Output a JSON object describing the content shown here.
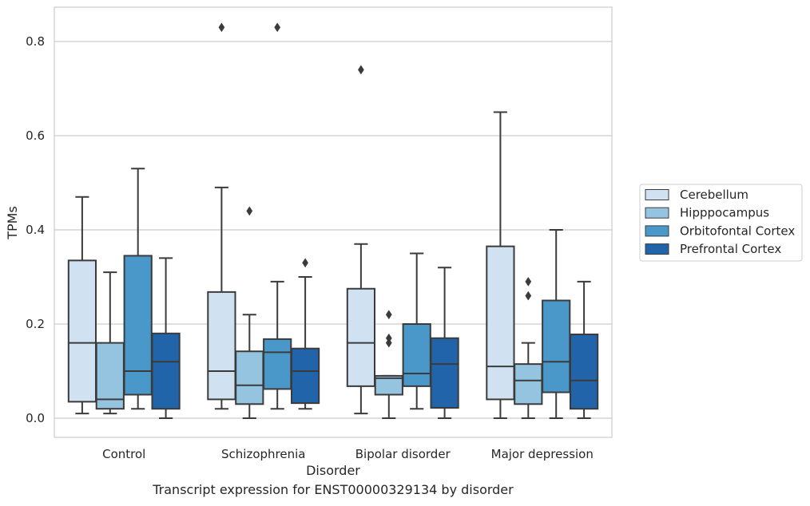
{
  "chart_data": {
    "type": "box",
    "title": "",
    "caption": "Transcript expression for ENST00000329134 by disorder",
    "xlabel": "Disorder",
    "ylabel": "TPMs",
    "ylim": [
      -0.04,
      0.875
    ],
    "yticks": [
      0.0,
      0.2,
      0.4,
      0.6,
      0.8
    ],
    "ytick_labels": [
      "0.0",
      "0.2",
      "0.4",
      "0.6",
      "0.8"
    ],
    "grid": "horizontal",
    "legend_position": "right",
    "categories": [
      "Control",
      "Schizophrenia",
      "Bipolar disorder",
      "Major depression"
    ],
    "series": [
      {
        "name": "Cerebellum",
        "color": "#d0e1f2",
        "boxes": [
          {
            "whislo": 0.01,
            "q1": 0.035,
            "med": 0.16,
            "q3": 0.335,
            "whishi": 0.47,
            "fliers": []
          },
          {
            "whislo": 0.02,
            "q1": 0.04,
            "med": 0.1,
            "q3": 0.268,
            "whishi": 0.49,
            "fliers": [
              0.83
            ]
          },
          {
            "whislo": 0.01,
            "q1": 0.068,
            "med": 0.16,
            "q3": 0.275,
            "whishi": 0.37,
            "fliers": [
              0.74
            ]
          },
          {
            "whislo": 0.0,
            "q1": 0.04,
            "med": 0.11,
            "q3": 0.365,
            "whishi": 0.65,
            "fliers": []
          }
        ]
      },
      {
        "name": "Hipppocampus",
        "color": "#94c4df",
        "boxes": [
          {
            "whislo": 0.01,
            "q1": 0.02,
            "med": 0.04,
            "q3": 0.16,
            "whishi": 0.31,
            "fliers": []
          },
          {
            "whislo": 0.0,
            "q1": 0.03,
            "med": 0.07,
            "q3": 0.142,
            "whishi": 0.22,
            "fliers": [
              0.44
            ]
          },
          {
            "whislo": 0.0,
            "q1": 0.05,
            "med": 0.085,
            "q3": 0.09,
            "whishi": 0.09,
            "fliers": [
              0.22,
              0.17,
              0.16
            ]
          },
          {
            "whislo": 0.0,
            "q1": 0.03,
            "med": 0.08,
            "q3": 0.115,
            "whishi": 0.16,
            "fliers": [
              0.29,
              0.26
            ]
          }
        ]
      },
      {
        "name": "Orbitofontal Cortex",
        "color": "#4a98c9",
        "boxes": [
          {
            "whislo": 0.02,
            "q1": 0.05,
            "med": 0.1,
            "q3": 0.345,
            "whishi": 0.53,
            "fliers": []
          },
          {
            "whislo": 0.02,
            "q1": 0.062,
            "med": 0.14,
            "q3": 0.168,
            "whishi": 0.29,
            "fliers": [
              0.83
            ]
          },
          {
            "whislo": 0.02,
            "q1": 0.068,
            "med": 0.095,
            "q3": 0.2,
            "whishi": 0.35,
            "fliers": []
          },
          {
            "whislo": 0.0,
            "q1": 0.055,
            "med": 0.12,
            "q3": 0.25,
            "whishi": 0.4,
            "fliers": []
          }
        ]
      },
      {
        "name": "Prefrontal Cortex",
        "color": "#2264a9",
        "boxes": [
          {
            "whislo": 0.0,
            "q1": 0.02,
            "med": 0.12,
            "q3": 0.18,
            "whishi": 0.34,
            "fliers": []
          },
          {
            "whislo": 0.02,
            "q1": 0.032,
            "med": 0.1,
            "q3": 0.148,
            "whishi": 0.3,
            "fliers": [
              0.33
            ]
          },
          {
            "whislo": 0.0,
            "q1": 0.022,
            "med": 0.115,
            "q3": 0.17,
            "whishi": 0.32,
            "fliers": []
          },
          {
            "whislo": 0.0,
            "q1": 0.02,
            "med": 0.08,
            "q3": 0.178,
            "whishi": 0.29,
            "fliers": []
          }
        ]
      }
    ]
  },
  "style": {
    "edge_color": "#3b3b3b",
    "grid_color": "#cccccc",
    "frame_color": "#cccccc",
    "text_color": "#262626"
  }
}
